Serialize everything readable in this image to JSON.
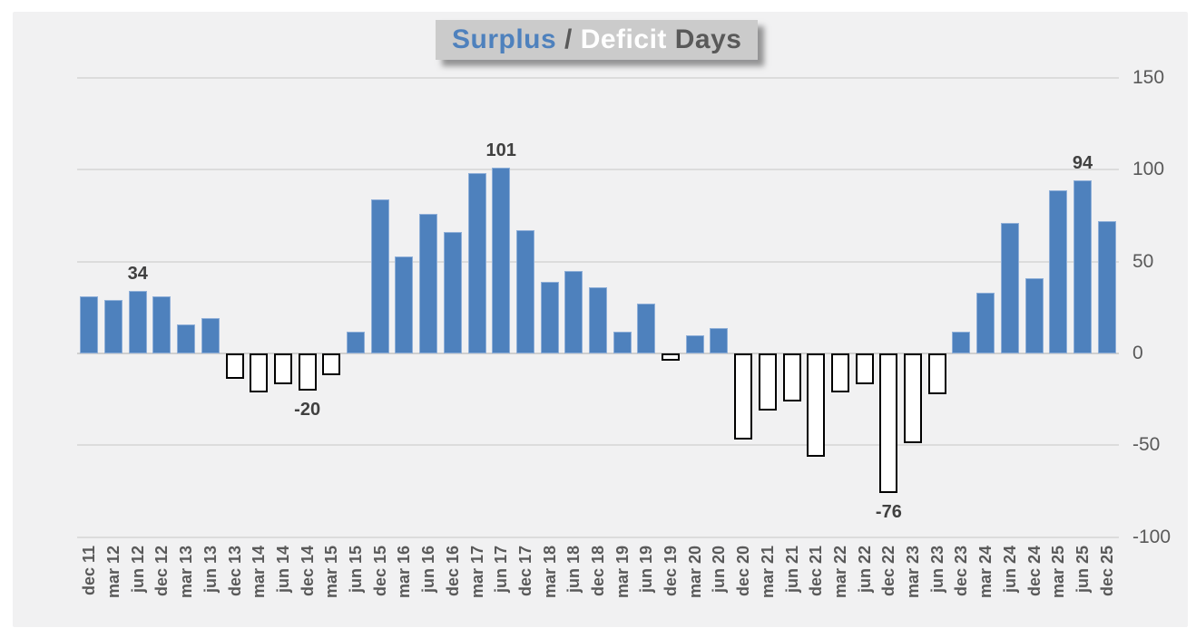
{
  "title": {
    "surplus": "Surplus",
    "separator": " / ",
    "deficit": "Deficit",
    "days": " Days"
  },
  "colors": {
    "surplus_bar_fill": "#4E81BD",
    "surplus_bar_border": "#8FAFD8",
    "deficit_bar_fill": "#FFFFFF",
    "deficit_bar_border": "#000000",
    "title_box_bg": "#CBCBCB",
    "title_surplus_text": "#4E81BD",
    "title_deficit_text": "#FFFFFF",
    "title_dark_text": "#595959",
    "axis_text": "#595959",
    "data_label_text": "#404040",
    "gridline": "#DCDCDC",
    "figure_bg": "#F1F1F2",
    "page_bg": "#FFFFFF"
  },
  "chart_data": {
    "type": "bar",
    "title": "Surplus / Deficit Days",
    "xlabel": "",
    "ylabel": "",
    "ylim": [
      -100,
      150
    ],
    "y_ticks": [
      150,
      100,
      50,
      0,
      -50,
      -100
    ],
    "y_axis_side": "right",
    "grid": true,
    "x_label_rotation": -90,
    "categories": [
      "dec 11",
      "mar 12",
      "jun 12",
      "dec 12",
      "mar 13",
      "jun 13",
      "dec 13",
      "mar 14",
      "jun 14",
      "dec 14",
      "mar 15",
      "jun 15",
      "dec 15",
      "mar 16",
      "jun 16",
      "dec 16",
      "mar 17",
      "jun 17",
      "dec 17",
      "mar 18",
      "jun 18",
      "dec 18",
      "mar 19",
      "jun 19",
      "dec 19",
      "mar 20",
      "jun 20",
      "dec 20",
      "mar 21",
      "jun 21",
      "dec 21",
      "mar 22",
      "jun 22",
      "dec 22",
      "mar 23",
      "jun 23",
      "dec 23",
      "mar 24",
      "jun 24",
      "dec 24",
      "mar 25",
      "jun 25",
      "dec 25"
    ],
    "values": [
      31,
      29,
      34,
      31,
      16,
      19,
      -14,
      -21,
      -17,
      -20,
      -12,
      12,
      84,
      53,
      76,
      66,
      98,
      101,
      67,
      39,
      45,
      36,
      12,
      27,
      -4,
      10,
      14,
      -47,
      -31,
      -26,
      -56,
      -21,
      -17,
      -76,
      -49,
      -22,
      12,
      33,
      71,
      41,
      89,
      94,
      72
    ],
    "annotations": [
      {
        "index": 2,
        "category": "jun 12",
        "text": "34"
      },
      {
        "index": 9,
        "category": "dec 14",
        "text": "-20"
      },
      {
        "index": 17,
        "category": "jun 17",
        "text": "101"
      },
      {
        "index": 33,
        "category": "dec 22",
        "text": "-76"
      },
      {
        "index": 41,
        "category": "jun 25",
        "text": "94"
      }
    ]
  }
}
